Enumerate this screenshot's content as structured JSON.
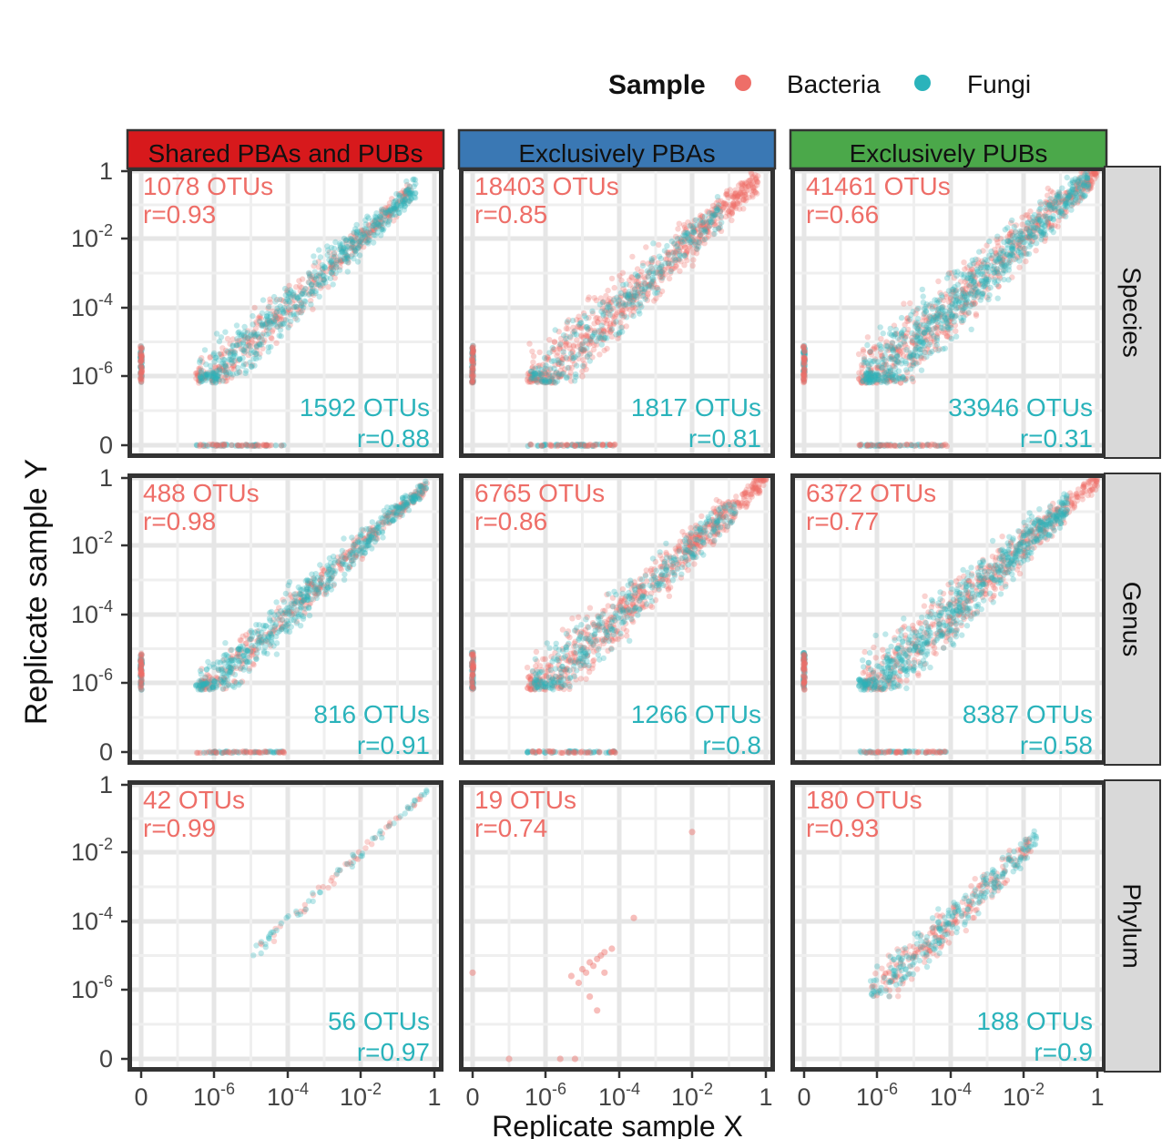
{
  "legend": {
    "title": "Sample",
    "placement": "top",
    "items": [
      {
        "label": "Bacteria",
        "color": "#ee6e68"
      },
      {
        "label": "Fungi",
        "color": "#2ab3bb"
      }
    ]
  },
  "chart_data": {
    "type": "scatter",
    "xlabel": "Replicate sample X",
    "ylabel": "Replicate sample Y",
    "scale": "pseudo-log (0, 1e-6, 1e-4, 1e-2, 1)",
    "x_ticks": [
      {
        "base": "0",
        "exp": ""
      },
      {
        "base": "10",
        "exp": "-6"
      },
      {
        "base": "10",
        "exp": "-4"
      },
      {
        "base": "10",
        "exp": "-2"
      },
      {
        "base": "1",
        "exp": ""
      }
    ],
    "y_ticks": [
      {
        "base": "1",
        "exp": ""
      },
      {
        "base": "10",
        "exp": "-2"
      },
      {
        "base": "10",
        "exp": "-4"
      },
      {
        "base": "10",
        "exp": "-6"
      },
      {
        "base": "0",
        "exp": ""
      }
    ],
    "grid": true,
    "columns": [
      {
        "label": "Shared PBAs and PUBs",
        "color": "#d7191c"
      },
      {
        "label": "Exclusively PBAs",
        "color": "#3a78b4"
      },
      {
        "label": "Exclusively PUBs",
        "color": "#4ba84a"
      }
    ],
    "rows": [
      "Species",
      "Genus",
      "Phylum"
    ],
    "panels": [
      {
        "row": 0,
        "col": 0,
        "bacteria_otus": "1078 OTUs",
        "bacteria_r": "r=0.93",
        "fungi_otus": "1592 OTUs",
        "fungi_r": "r=0.88"
      },
      {
        "row": 0,
        "col": 1,
        "bacteria_otus": "18403 OTUs",
        "bacteria_r": "r=0.85",
        "fungi_otus": "1817 OTUs",
        "fungi_r": "r=0.81"
      },
      {
        "row": 0,
        "col": 2,
        "bacteria_otus": "41461 OTUs",
        "bacteria_r": "r=0.66",
        "fungi_otus": "33946 OTUs",
        "fungi_r": "r=0.31"
      },
      {
        "row": 1,
        "col": 0,
        "bacteria_otus": "488 OTUs",
        "bacteria_r": "r=0.98",
        "fungi_otus": "816 OTUs",
        "fungi_r": "r=0.91"
      },
      {
        "row": 1,
        "col": 1,
        "bacteria_otus": "6765 OTUs",
        "bacteria_r": "r=0.86",
        "fungi_otus": "1266 OTUs",
        "fungi_r": "r=0.8"
      },
      {
        "row": 1,
        "col": 2,
        "bacteria_otus": "6372 OTUs",
        "bacteria_r": "r=0.77",
        "fungi_otus": "8387 OTUs",
        "fungi_r": "r=0.58"
      },
      {
        "row": 2,
        "col": 0,
        "bacteria_otus": "42 OTUs",
        "bacteria_r": "r=0.99",
        "fungi_otus": "56 OTUs",
        "fungi_r": "r=0.97"
      },
      {
        "row": 2,
        "col": 1,
        "bacteria_otus": "19 OTUs",
        "bacteria_r": "r=0.74",
        "fungi_otus": "",
        "fungi_r": ""
      },
      {
        "row": 2,
        "col": 2,
        "bacteria_otus": "180 OTUs",
        "bacteria_r": "r=0.93",
        "fungi_otus": "188 OTUs",
        "fungi_r": "r=0.9"
      }
    ]
  }
}
